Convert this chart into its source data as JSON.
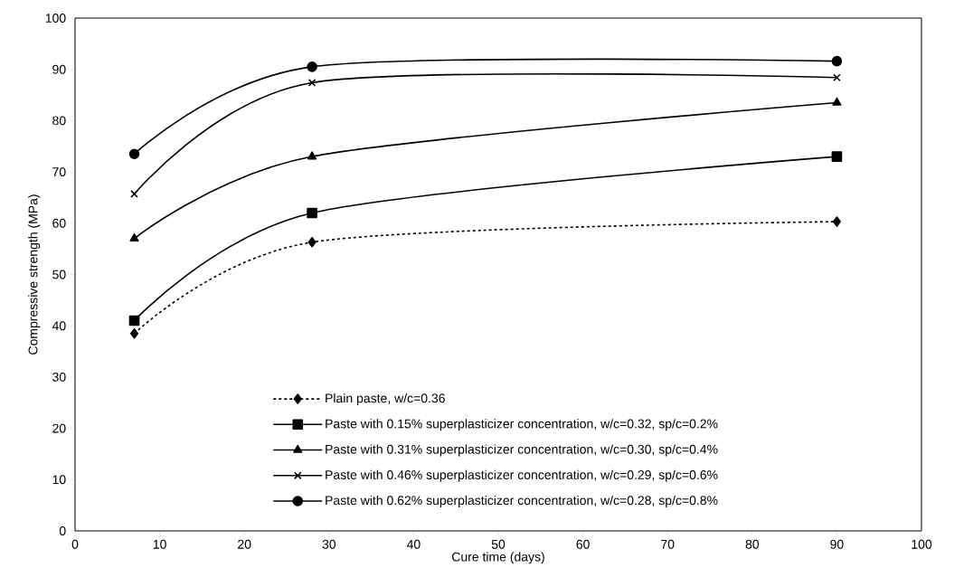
{
  "chart_data": {
    "type": "line",
    "xlabel": "Cure time (days)",
    "ylabel": "Compressive strength (MPa)",
    "x": [
      7,
      28,
      90
    ],
    "series": [
      {
        "name": "Plain paste, w/c=0.36",
        "color": "#000000",
        "marker": "diamond",
        "line_style": "dotted",
        "values": [
          38.5,
          56.3,
          60.3
        ]
      },
      {
        "name": "Paste with 0.15% superplasticizer concentration, w/c=0.32, sp/c=0.2%",
        "color": "#000000",
        "marker": "square",
        "line_style": "solid",
        "values": [
          41,
          62,
          73
        ]
      },
      {
        "name": "Paste with 0.31% superplasticizer concentration, w/c=0.30, sp/c=0.4%",
        "color": "#000000",
        "marker": "triangle",
        "line_style": "solid",
        "values": [
          57,
          73,
          83.5
        ]
      },
      {
        "name": "Paste with 0.46% superplasticizer concentration, w/c=0.29, sp/c=0.6%",
        "color": "#000000",
        "marker": "cross",
        "line_style": "solid",
        "values": [
          65.7,
          87.4,
          88.4
        ]
      },
      {
        "name": "Paste with 0.62% superplasticizer concentration, w/c=0.28, sp/c=0.8%",
        "color": "#000000",
        "marker": "circle",
        "line_style": "solid",
        "values": [
          73.5,
          90.5,
          91.6
        ]
      }
    ],
    "xlim": [
      0,
      100
    ],
    "ylim": [
      0,
      100
    ],
    "xticks": [
      0,
      10,
      20,
      30,
      40,
      50,
      60,
      70,
      80,
      90,
      100
    ],
    "yticks": [
      0,
      10,
      20,
      30,
      40,
      50,
      60,
      70,
      80,
      90,
      100
    ],
    "grid": false,
    "legend": "bottom right"
  }
}
